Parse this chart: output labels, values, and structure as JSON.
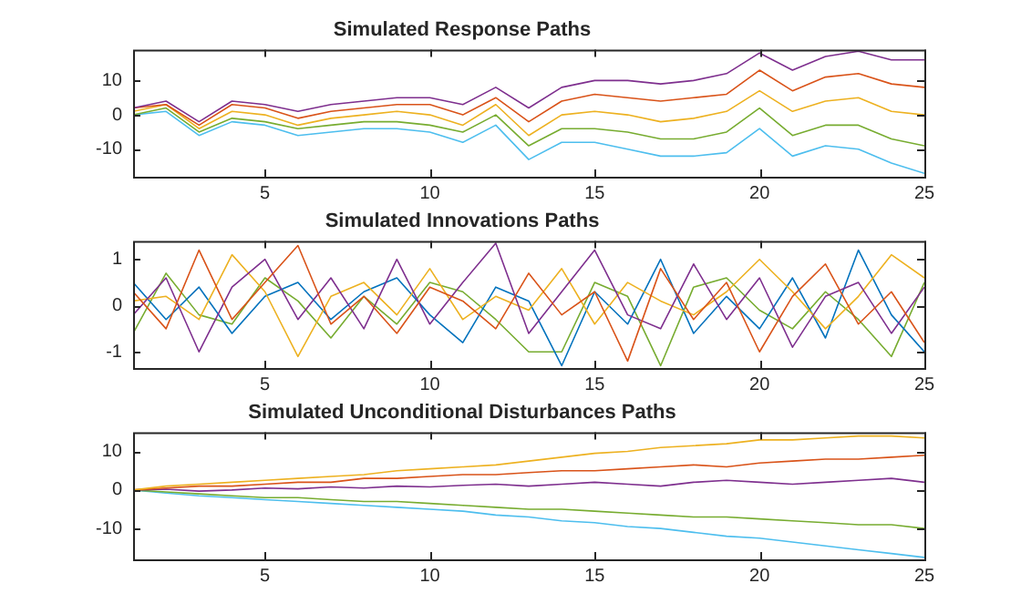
{
  "chart_data": [
    {
      "type": "line",
      "title": "Simulated Response Paths",
      "x": [
        1,
        2,
        3,
        4,
        5,
        6,
        7,
        8,
        9,
        10,
        11,
        12,
        13,
        14,
        15,
        16,
        17,
        18,
        19,
        20,
        21,
        22,
        23,
        24,
        25
      ],
      "xlim": [
        1,
        25
      ],
      "xticks": [
        5,
        10,
        15,
        20,
        25
      ],
      "ylim": [
        -18,
        19
      ],
      "yticks": [
        -10,
        0,
        10
      ],
      "grid": false,
      "legend": false,
      "line_style": "solid",
      "series": [
        {
          "color": "#7e2f8e",
          "values": [
            2,
            4,
            -2,
            4,
            3,
            1,
            3,
            4,
            5,
            5,
            3,
            8,
            2,
            8,
            10,
            10,
            9,
            10,
            12,
            18,
            13,
            17,
            18.5,
            16,
            16
          ]
        },
        {
          "color": "#d95319",
          "values": [
            2,
            3,
            -3,
            3,
            2,
            -1,
            1,
            2,
            3,
            3,
            0,
            5,
            -2,
            4,
            6,
            5,
            4,
            5,
            6,
            13,
            7,
            11,
            12,
            9,
            8
          ]
        },
        {
          "color": "#edb120",
          "values": [
            1,
            3,
            -4,
            1,
            0,
            -3,
            -1,
            0,
            1,
            0,
            -3,
            3,
            -6,
            0,
            1,
            0,
            -2,
            -1,
            1,
            7,
            1,
            4,
            5,
            1,
            0
          ]
        },
        {
          "color": "#77ac30",
          "values": [
            0,
            2,
            -5,
            -1,
            -2,
            -4,
            -3,
            -2,
            -2,
            -3,
            -5,
            0,
            -9,
            -4,
            -4,
            -5,
            -7,
            -7,
            -5,
            2,
            -6,
            -3,
            -3,
            -7,
            -9
          ]
        },
        {
          "color": "#4dbeee",
          "values": [
            0,
            1,
            -6,
            -2,
            -3,
            -6,
            -5,
            -4,
            -4,
            -5,
            -8,
            -3,
            -13,
            -8,
            -8,
            -10,
            -12,
            -12,
            -11,
            -4,
            -12,
            -9,
            -10,
            -14,
            -17
          ]
        }
      ]
    },
    {
      "type": "line",
      "title": "Simulated Innovations Paths",
      "x": [
        1,
        2,
        3,
        4,
        5,
        6,
        7,
        8,
        9,
        10,
        11,
        12,
        13,
        14,
        15,
        16,
        17,
        18,
        19,
        20,
        21,
        22,
        23,
        24,
        25
      ],
      "xlim": [
        1,
        25
      ],
      "xticks": [
        5,
        10,
        15,
        20,
        25
      ],
      "ylim": [
        -1.35,
        1.4
      ],
      "yticks": [
        -1,
        0,
        1
      ],
      "grid": false,
      "legend": false,
      "line_style": "solid",
      "series": [
        {
          "color": "#d95319",
          "values": [
            0.3,
            -0.5,
            1.2,
            -0.3,
            0.5,
            1.3,
            -0.4,
            0.2,
            -0.6,
            0.4,
            0.1,
            -0.5,
            0.7,
            -0.2,
            0.3,
            -1.2,
            0.8,
            -0.3,
            0.5,
            -1.0,
            0.2,
            0.9,
            -0.4,
            0.3,
            -0.8
          ]
        },
        {
          "color": "#7e2f8e",
          "values": [
            -0.2,
            0.6,
            -1.0,
            0.4,
            1.0,
            -0.3,
            0.6,
            -0.5,
            1.0,
            -0.4,
            0.5,
            1.35,
            -0.6,
            0.3,
            1.2,
            -0.2,
            -0.5,
            0.9,
            -0.3,
            0.6,
            -0.9,
            0.2,
            0.5,
            -0.6,
            0.4
          ]
        },
        {
          "color": "#edb120",
          "values": [
            0.1,
            0.2,
            -0.3,
            1.1,
            0.3,
            -1.1,
            0.2,
            0.5,
            -0.2,
            0.8,
            -0.3,
            0.2,
            -0.1,
            0.8,
            -0.4,
            0.5,
            0.1,
            -0.2,
            0.3,
            1.0,
            0.3,
            -0.5,
            0.2,
            1.1,
            0.6
          ]
        },
        {
          "color": "#0072bd",
          "values": [
            0.5,
            -0.3,
            0.4,
            -0.6,
            0.2,
            0.5,
            -0.3,
            0.3,
            0.6,
            -0.2,
            -0.8,
            0.4,
            0.1,
            -1.3,
            0.3,
            -0.4,
            1.0,
            -0.6,
            0.2,
            -0.5,
            0.6,
            -0.7,
            1.2,
            -0.2,
            -1.0
          ]
        },
        {
          "color": "#77ac30",
          "values": [
            -0.6,
            0.7,
            -0.2,
            -0.4,
            0.6,
            0.1,
            -0.7,
            0.2,
            -0.4,
            0.5,
            0.3,
            -0.3,
            -1.0,
            -1.0,
            0.5,
            0.2,
            -1.3,
            0.4,
            0.6,
            -0.1,
            -0.5,
            0.3,
            -0.3,
            -1.1,
            0.5
          ]
        }
      ]
    },
    {
      "type": "line",
      "title": "Simulated Unconditional Disturbances Paths",
      "x": [
        1,
        2,
        3,
        4,
        5,
        6,
        7,
        8,
        9,
        10,
        11,
        12,
        13,
        14,
        15,
        16,
        17,
        18,
        19,
        20,
        21,
        22,
        23,
        24,
        25
      ],
      "xlim": [
        1,
        25
      ],
      "xticks": [
        5,
        10,
        15,
        20,
        25
      ],
      "ylim": [
        -18,
        15
      ],
      "yticks": [
        -10,
        0,
        10
      ],
      "grid": false,
      "legend": false,
      "line_style": "solid",
      "series": [
        {
          "color": "#edb120",
          "values": [
            0,
            1,
            1.5,
            2,
            2.5,
            3,
            3.5,
            4,
            5,
            5.5,
            6,
            6.5,
            7.5,
            8.5,
            9.5,
            10,
            11,
            11.5,
            12,
            13,
            13,
            13.5,
            14,
            14,
            13.5
          ]
        },
        {
          "color": "#d95319",
          "values": [
            0,
            0.5,
            1,
            1,
            1.5,
            2,
            2,
            3,
            3,
            3.5,
            4,
            4,
            4.5,
            5,
            5,
            5.5,
            6,
            6.5,
            6,
            7,
            7.5,
            8,
            8,
            8.5,
            9
          ]
        },
        {
          "color": "#7e2f8e",
          "values": [
            0,
            0.2,
            -0.3,
            0,
            0.5,
            0.3,
            0.8,
            0.5,
            1,
            0.8,
            1.2,
            1.5,
            1,
            1.5,
            2,
            1.5,
            1,
            2,
            2.5,
            2,
            1.5,
            2,
            2.5,
            3,
            2
          ]
        },
        {
          "color": "#77ac30",
          "values": [
            0,
            -0.5,
            -1,
            -1.5,
            -2,
            -2,
            -2.5,
            -3,
            -3,
            -3.5,
            -4,
            -4.5,
            -5,
            -5,
            -5.5,
            -6,
            -6.5,
            -7,
            -7,
            -7.5,
            -8,
            -8.5,
            -9,
            -9,
            -10
          ]
        },
        {
          "color": "#4dbeee",
          "values": [
            0,
            -0.8,
            -1.5,
            -2,
            -2.5,
            -3,
            -3.5,
            -4,
            -4.5,
            -5,
            -5.5,
            -6.5,
            -7,
            -8,
            -8.5,
            -9.5,
            -10,
            -11,
            -12,
            -12.5,
            -13.5,
            -14.5,
            -15.5,
            -16.5,
            -17.5
          ]
        }
      ]
    }
  ]
}
